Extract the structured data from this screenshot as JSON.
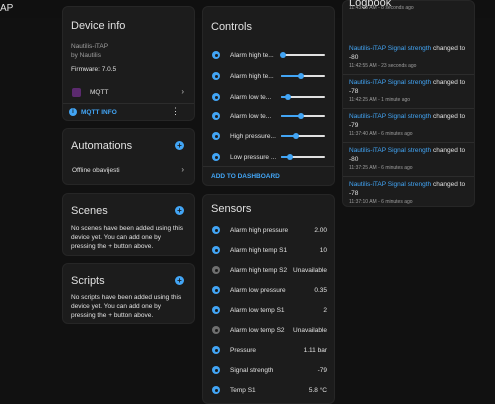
{
  "app": {
    "title": "AP"
  },
  "device_info": {
    "title": "Device info",
    "model": "Nautilis-iTAP",
    "manufacturer": "by Nautilis",
    "firmware": "Firmware: 7.0.5",
    "integration": "MQTT",
    "mqtt_info": "MQTT INFO"
  },
  "automations": {
    "title": "Automations",
    "items": [
      "Offline obavijesti"
    ]
  },
  "scenes": {
    "title": "Scenes",
    "empty": "No scenes have been added using this device yet. You can add one by pressing the + button above."
  },
  "scripts": {
    "title": "Scripts",
    "empty": "No scripts have been added using this device yet. You can add one by pressing the + button above."
  },
  "controls": {
    "title": "Controls",
    "items": [
      {
        "label": "Alarm high te...",
        "value": 0.05
      },
      {
        "label": "Alarm high te...",
        "value": 0.45
      },
      {
        "label": "Alarm low te...",
        "value": 0.15
      },
      {
        "label": "Alarm low te...",
        "value": 0.45
      },
      {
        "label": "High pressure...",
        "value": 0.35
      },
      {
        "label": "Low pressure ...",
        "value": 0.2
      }
    ],
    "add_to_dashboard": "ADD TO DASHBOARD"
  },
  "sensors": {
    "title": "Sensors",
    "items": [
      {
        "label": "Alarm high pressure",
        "value": "2.00",
        "icon": "gauge-icon",
        "color": "#42a5f5"
      },
      {
        "label": "Alarm high temp S1",
        "value": "10",
        "icon": "gauge-icon",
        "color": "#42a5f5"
      },
      {
        "label": "Alarm high temp S2",
        "value": "Unavailable",
        "icon": "gauge-icon",
        "color": "#6f6f6f"
      },
      {
        "label": "Alarm low pressure",
        "value": "0.35",
        "icon": "gauge-icon",
        "color": "#42a5f5"
      },
      {
        "label": "Alarm low temp S1",
        "value": "2",
        "icon": "gauge-icon",
        "color": "#42a5f5"
      },
      {
        "label": "Alarm low temp S2",
        "value": "Unavailable",
        "icon": "gauge-icon",
        "color": "#6f6f6f"
      },
      {
        "label": "Pressure",
        "value": "1.11 bar",
        "icon": "pressure-icon",
        "color": "#42a5f5"
      },
      {
        "label": "Signal strength",
        "value": "-79",
        "icon": "wifi-icon",
        "color": "#42a5f5"
      },
      {
        "label": "Temp S1",
        "value": "5.8 °C",
        "icon": "thermometer-icon",
        "color": "#42a5f5"
      }
    ]
  },
  "logbook": {
    "title": "Logbook",
    "top_time": "11:43:03 AM - 8 seconds ago",
    "entries": [
      {
        "entity": "Nautilis-iTAP Signal strength",
        "action": "changed to",
        "value": "-80",
        "time": "11:42:55 AM - 23 seconds ago"
      },
      {
        "entity": "Nautilis-iTAP Signal strength",
        "action": "changed to",
        "value": "-78",
        "time": "11:42:25 AM - 1 minute ago"
      },
      {
        "entity": "Nautilis-iTAP Signal strength",
        "action": "changed to",
        "value": "-79",
        "time": "11:37:40 AM - 6 minutes ago"
      },
      {
        "entity": "Nautilis-iTAP Signal strength",
        "action": "changed to",
        "value": "-80",
        "time": "11:37:25 AM - 6 minutes ago"
      },
      {
        "entity": "Nautilis-iTAP Signal strength",
        "action": "changed to",
        "value": "-78",
        "time": "11:37:10 AM - 6 minutes ago"
      }
    ]
  }
}
